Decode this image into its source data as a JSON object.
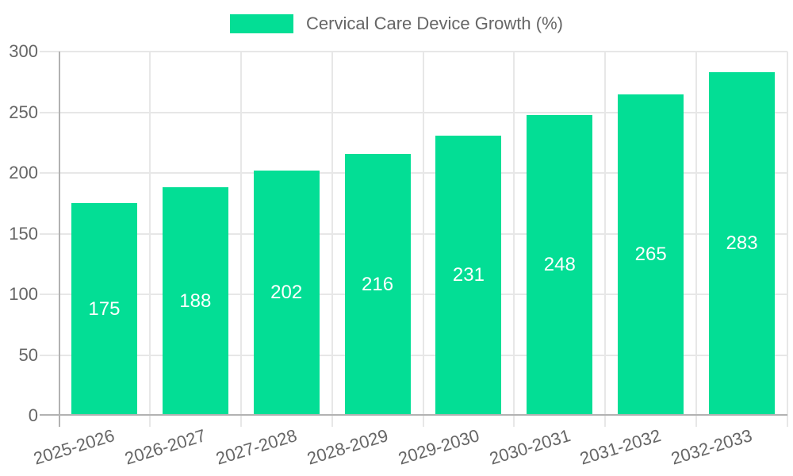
{
  "chart_data": {
    "type": "bar",
    "title": "Cervical Care Device Growth (%)",
    "legend_label": "Cervical Care Device Growth (%)",
    "legend_position": "top-center",
    "categories": [
      "2025-2026",
      "2026-2027",
      "2027-2028",
      "2028-2029",
      "2029-2030",
      "2030-2031",
      "2031-2032",
      "2032-2033"
    ],
    "values": [
      175,
      188,
      202,
      216,
      231,
      248,
      265,
      283
    ],
    "value_labels_shown": true,
    "value_label_position": "center-of-bar",
    "xlabel": "",
    "ylabel": "",
    "ylim": [
      0,
      300
    ],
    "yticks": [
      0,
      50,
      100,
      150,
      200,
      250,
      300
    ],
    "grid": true,
    "x_tick_label_rotation_deg": -17,
    "colors": {
      "bar": "#03de95",
      "value_label": "#ffffff",
      "tick_text": "#666666",
      "legend_text": "#666666",
      "gridline": "#e7e7e7",
      "axis_line": "#b2b2b2",
      "background": "#ffffff"
    }
  }
}
